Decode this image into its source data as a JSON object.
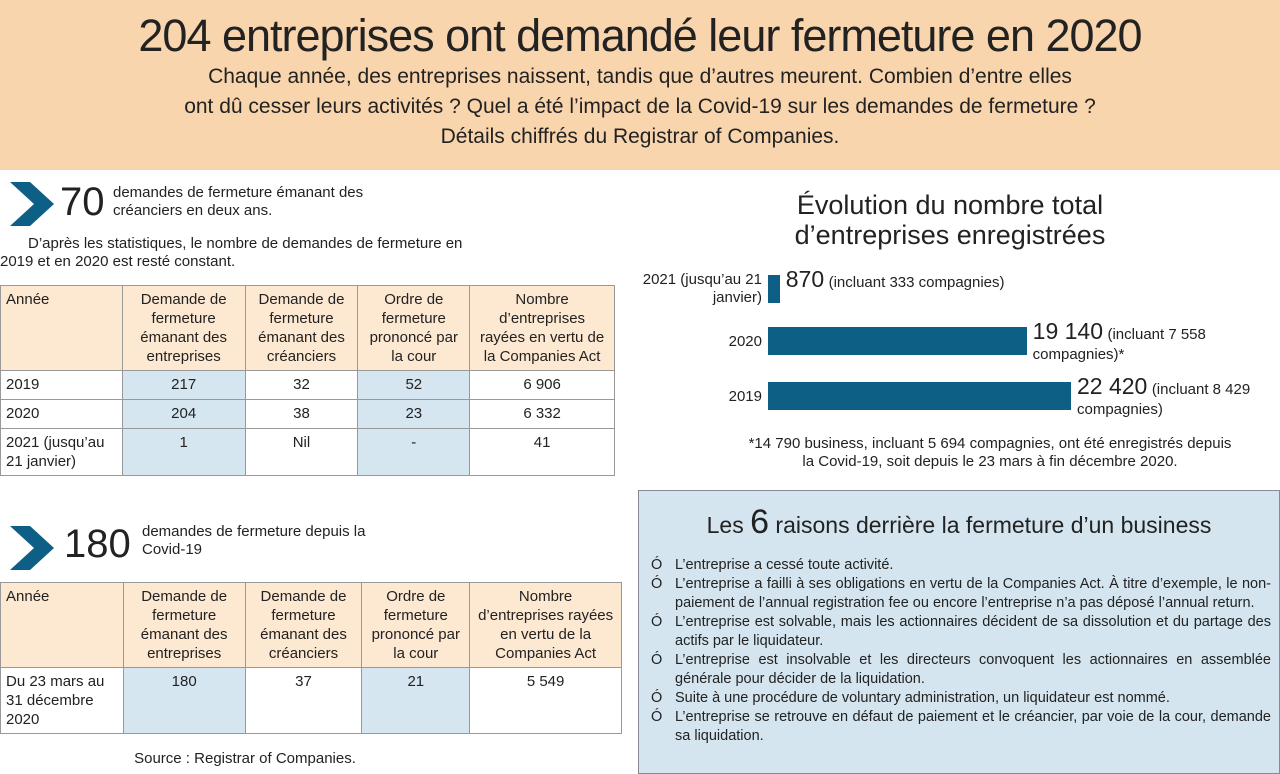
{
  "header": {
    "title": "204 entreprises ont demandé leur fermeture en 2020",
    "subtitle_lines": [
      "Chaque année, des entreprises naissent, tandis que d’autres meurent. Combien d’entre elles",
      "ont dû cesser leurs activités ? Quel a été l’impact de la Covid-19 sur les demandes de fermeture ?",
      "Détails chiffrés du Registrar of Companies."
    ]
  },
  "section1": {
    "number": "70",
    "text": "demandes de fermeture émanant des créanciers en deux ans.",
    "intro": "D’après les statistiques, le nombre de demandes de fermeture en 2019 et en 2020 est resté constant."
  },
  "table1": {
    "headers": [
      "Année",
      "Demande de fermeture émanant des entreprises",
      "Demande de fermeture émanant des créanciers",
      "Ordre de fermeture prononcé par la cour",
      "Nombre d’entreprises rayées en vertu de la Companies Act"
    ],
    "rows": [
      [
        "2019",
        "217",
        "32",
        "52",
        "6 906"
      ],
      [
        "2020",
        "204",
        "38",
        "23",
        "6 332"
      ],
      [
        "2021 (jusqu’au 21 janvier)",
        "1",
        "Nil",
        "-",
        "41"
      ]
    ]
  },
  "section2": {
    "number": "180",
    "text": "demandes de fermeture depuis la Covid-19"
  },
  "table2": {
    "headers": [
      "Année",
      "Demande de fermeture émanant des entreprises",
      "Demande de fermeture émanant des créanciers",
      "Ordre de fermeture prononcé par la cour",
      "Nombre d’entreprises rayées en vertu de la Companies Act"
    ],
    "rows": [
      [
        "Du 23 mars au 31 décembre 2020",
        "180",
        "37",
        "21",
        "5 549"
      ]
    ]
  },
  "source": "Source : Registrar of Companies.",
  "chart_data": {
    "type": "bar",
    "orientation": "horizontal",
    "title_lines": [
      "Évolution du nombre total",
      "d’entreprises enregistrées"
    ],
    "categories": [
      "2021 (jusqu’au 21 janvier)",
      "2020",
      "2019"
    ],
    "values": [
      870,
      19140,
      22420
    ],
    "value_labels": [
      "870",
      "19 140",
      "22 420"
    ],
    "annotations": [
      "(incluant 333 compagnies)",
      "(incluant 7 558 compagnies)*",
      "(incluant 8 429 compagnies)"
    ],
    "color": "#0e5f86",
    "footnote": "*14 790 business, incluant 5 694 compagnies, ont été enregistrés depuis la Covid-19, soit depuis le 23 mars à fin décembre 2020."
  },
  "reasons": {
    "title_before": "Les",
    "number": "6",
    "title_after": "raisons derrière la fermeture d’un business",
    "bullet": "Ó",
    "items": [
      "L’entreprise a cessé toute activité.",
      "L’entreprise a failli à ses obligations en vertu de la Companies Act. À titre d’exemple, le non-paiement de l’annual registration fee ou encore l’entreprise n’a pas déposé l’annual return.",
      "L’entreprise est solvable, mais les actionnaires décident de sa dissolution et du partage des actifs par le liquidateur.",
      "L’entreprise est insolvable et les directeurs convoquent les actionnaires en assemblée générale pour décider de la liquidation.",
      "Suite à une procédure de voluntary administration, un liquidateur est nommé.",
      "L’entreprise se retrouve en défaut de paiement et le créancier, par voie de la cour, demande sa liquidation."
    ]
  }
}
